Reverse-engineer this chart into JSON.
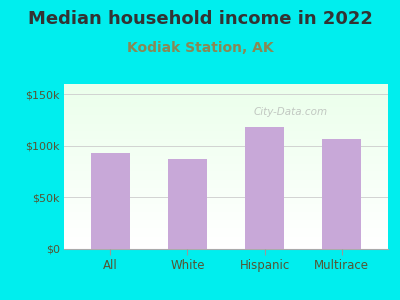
{
  "title": "Median household income in 2022",
  "subtitle": "Kodiak Station, AK",
  "categories": [
    "All",
    "White",
    "Hispanic",
    "Multirace"
  ],
  "values": [
    93000,
    87000,
    118000,
    107000
  ],
  "bar_color": "#C8A8D8",
  "background_color": "#00EEEE",
  "yticks": [
    0,
    50000,
    100000,
    150000
  ],
  "ytick_labels": [
    "$0",
    "$50k",
    "$100k",
    "$150k"
  ],
  "ylim": [
    0,
    160000
  ],
  "title_fontsize": 13,
  "subtitle_fontsize": 10,
  "watermark": "City-Data.com",
  "title_color": "#333333",
  "subtitle_color": "#888855",
  "tick_label_color": "#555533",
  "bar_width": 0.5
}
